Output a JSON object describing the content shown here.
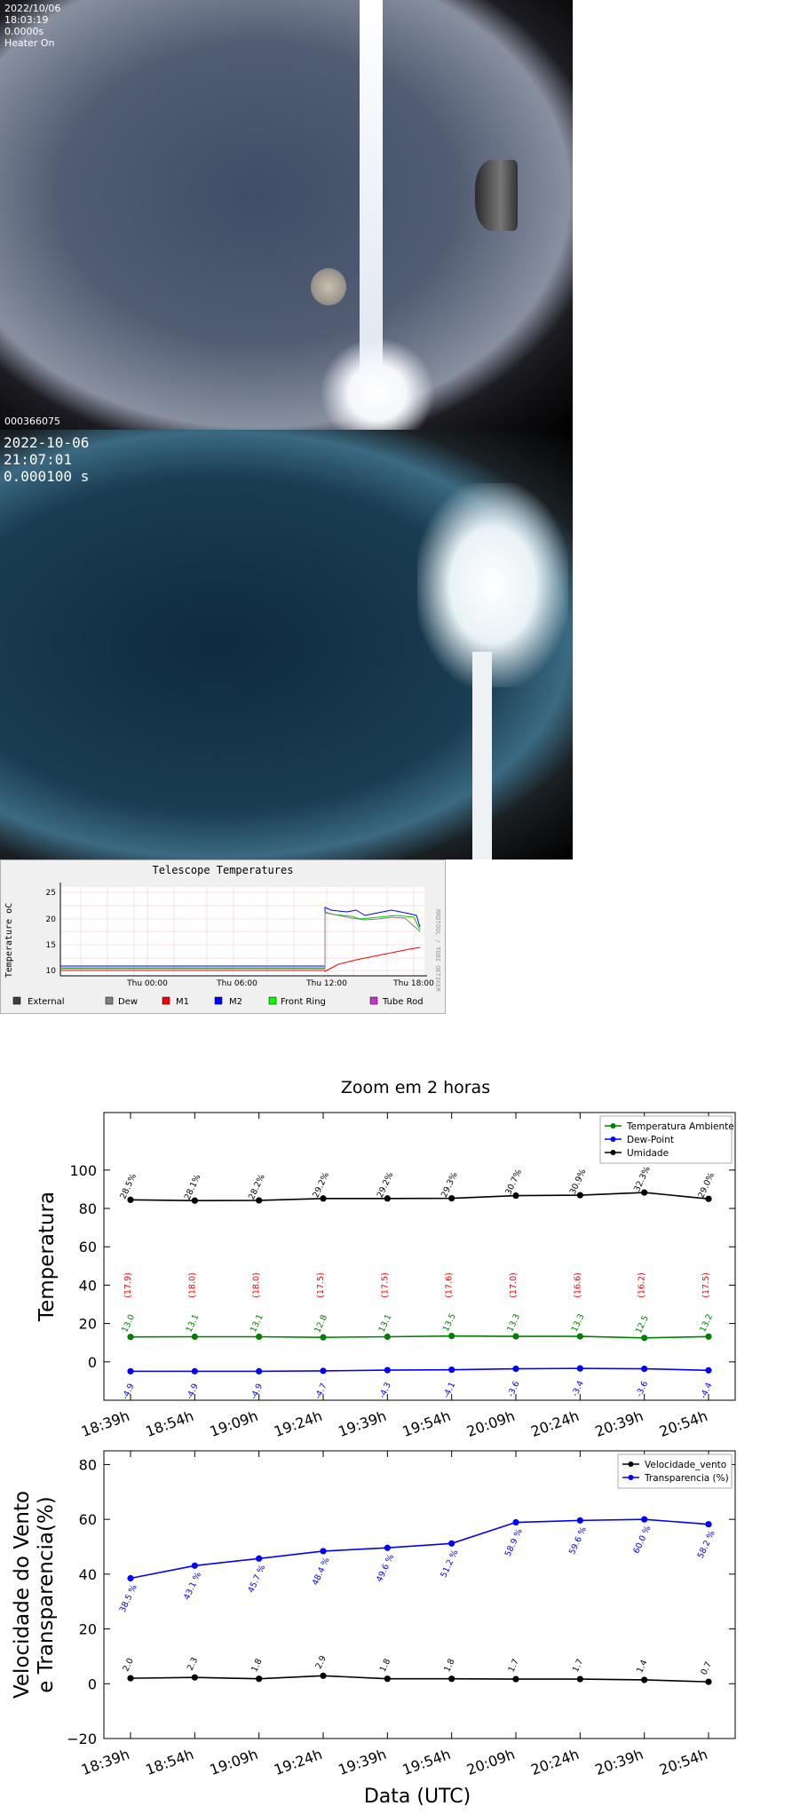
{
  "camera1": {
    "date": "2022/10/06",
    "time": "18:03:19",
    "exposure": "0.0000s",
    "heater": "Heater On",
    "frame_id": "000366075"
  },
  "camera2": {
    "date": "2022-10-06",
    "time": "21:07:01",
    "exposure": "0.000100 s"
  },
  "telescope": {
    "title": "Telescope Temperatures",
    "ylabel": "Temperature oC",
    "side_label": "RRDTOOL / TOBI OETIKER",
    "legend": [
      {
        "label": "External",
        "color": "#404040"
      },
      {
        "label": "Dew",
        "color": "#808080"
      },
      {
        "label": "M1",
        "color": "#ff0000"
      },
      {
        "label": "M2",
        "color": "#0000ff"
      },
      {
        "label": "Front Ring",
        "color": "#00ff00"
      },
      {
        "label": "Tube Rod",
        "color": "#cc33cc"
      }
    ]
  },
  "chart_title": "Zoom em 2 horas",
  "x_axis_label": "Data (UTC)",
  "chart_data": [
    {
      "type": "line",
      "x": [
        "18:39h",
        "18:54h",
        "19:09h",
        "19:24h",
        "19:39h",
        "19:54h",
        "20:09h",
        "20:24h",
        "20:39h",
        "20:54h"
      ],
      "ylabel": "Temperatura",
      "ylim": [
        -20,
        130
      ],
      "yticks": [
        0,
        20,
        40,
        60,
        80,
        100
      ],
      "legend_position": "top-right",
      "series": [
        {
          "name": "Temperatura Ambiente",
          "color": "#008000",
          "values": [
            13.0,
            13.1,
            13.1,
            12.8,
            13.1,
            13.5,
            13.3,
            13.3,
            12.5,
            13.2
          ],
          "labels": [
            "13.0",
            "13.1",
            "13.1",
            "12.8",
            "13.1",
            "13.5",
            "13.3",
            "13.3",
            "12.5",
            "13.2"
          ]
        },
        {
          "name": "Dew-Point",
          "color": "#0000ff",
          "values": [
            -4.9,
            -4.9,
            -4.9,
            -4.7,
            -4.3,
            -4.1,
            -3.6,
            -3.4,
            -3.6,
            -4.4
          ],
          "labels": [
            "-4.9",
            "-4.9",
            "-4.9",
            "-4.7",
            "-4.3",
            "-4.1",
            "-3.6",
            "-3.4",
            "-3.6",
            "-4.4"
          ]
        },
        {
          "name": "Umidade",
          "color": "#000000",
          "values": [
            84.5,
            84.1,
            84.2,
            85.2,
            85.2,
            85.3,
            86.7,
            86.9,
            88.3,
            85.0
          ],
          "labels": [
            "28.5%",
            "28.1%",
            "28.2%",
            "29.2%",
            "29.2%",
            "29.3%",
            "30.7%",
            "30.9%",
            "32.3%",
            "29.0%"
          ]
        }
      ],
      "extra_labels": {
        "color": "#ff0000",
        "y": 40,
        "labels": [
          "(17.9)",
          "(18.0)",
          "(18.0)",
          "(17.5)",
          "(17.5)",
          "(17.6)",
          "(17.0)",
          "(16.6)",
          "(16.2)",
          "(17.5)"
        ]
      }
    },
    {
      "type": "line",
      "x": [
        "18:39h",
        "18:54h",
        "19:09h",
        "19:24h",
        "19:39h",
        "19:54h",
        "20:09h",
        "20:24h",
        "20:39h",
        "20:54h"
      ],
      "ylabel": "Velocidade do Vento\ne Transparencia(%)",
      "xlabel": "Data (UTC)",
      "ylim": [
        -20,
        85
      ],
      "yticks": [
        -20,
        0,
        20,
        40,
        60,
        80
      ],
      "legend_position": "top-right",
      "series": [
        {
          "name": "Velocidade_vento",
          "color": "#000000",
          "values": [
            2.0,
            2.3,
            1.8,
            2.9,
            1.8,
            1.8,
            1.7,
            1.7,
            1.4,
            0.7
          ],
          "labels": [
            "2.0",
            "2.3",
            "1.8",
            "2.9",
            "1.8",
            "1.8",
            "1.7",
            "1.7",
            "1.4",
            "0.7"
          ]
        },
        {
          "name": "Transparencia (%)",
          "color": "#0000ff",
          "values": [
            38.5,
            43.1,
            45.7,
            48.4,
            49.6,
            51.2,
            58.9,
            59.6,
            60.0,
            58.2
          ],
          "labels": [
            "38.5 %",
            "43.1 %",
            "45.7 %",
            "48.4 %",
            "49.6 %",
            "51.2 %",
            "58.9 %",
            "59.6 %",
            "60.0 %",
            "58.2 %"
          ]
        }
      ]
    }
  ]
}
